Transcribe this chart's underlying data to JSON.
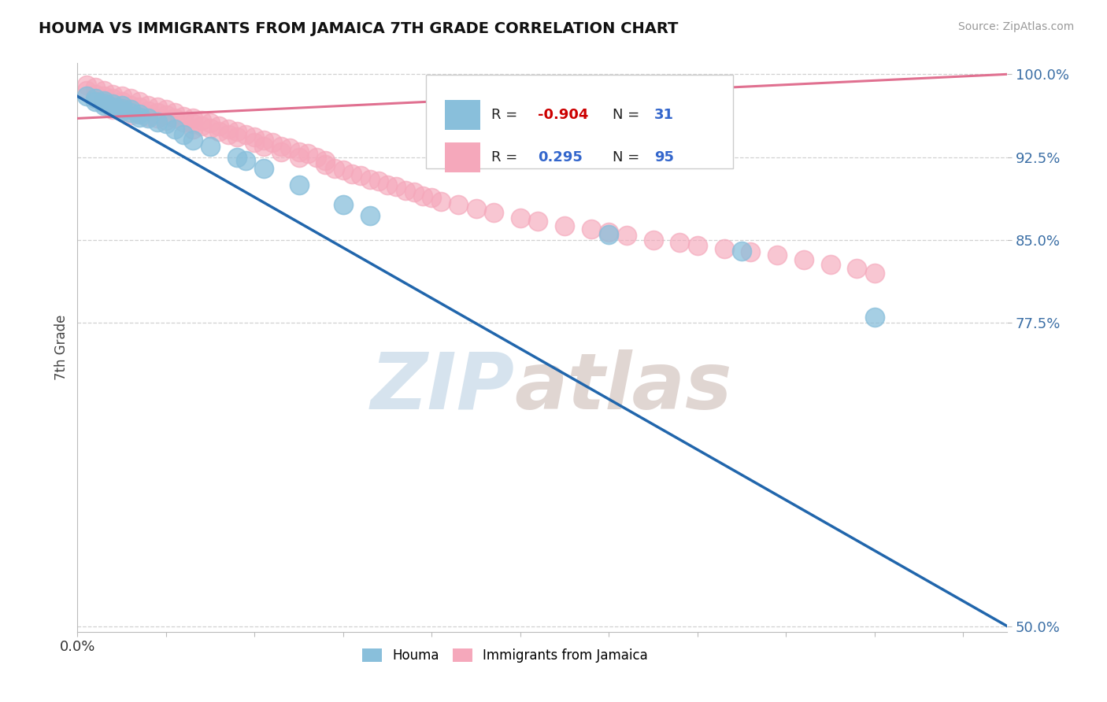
{
  "title": "HOUMA VS IMMIGRANTS FROM JAMAICA 7TH GRADE CORRELATION CHART",
  "source_text": "Source: ZipAtlas.com",
  "ylabel": "7th Grade",
  "xlim": [
    0.0,
    0.105
  ],
  "ylim": [
    0.495,
    1.01
  ],
  "yticks": [
    0.5,
    0.775,
    0.85,
    0.925,
    1.0
  ],
  "ytick_labels": [
    "50.0%",
    "77.5%",
    "85.0%",
    "92.5%",
    "100.0%"
  ],
  "xtick_positions": [
    0.0,
    0.01,
    0.02,
    0.03,
    0.04,
    0.05,
    0.06,
    0.07,
    0.08,
    0.09,
    0.1
  ],
  "blue_color": "#89bfdb",
  "pink_color": "#f5a8bb",
  "blue_line_color": "#2166ac",
  "pink_line_color": "#e07090",
  "grid_color": "#cccccc",
  "background_color": "#ffffff",
  "legend_R_blue": "-0.904",
  "legend_N_blue": "31",
  "legend_R_pink": "0.295",
  "legend_N_pink": "95",
  "blue_points_x": [
    0.001,
    0.002,
    0.002,
    0.003,
    0.003,
    0.003,
    0.004,
    0.004,
    0.005,
    0.005,
    0.005,
    0.006,
    0.006,
    0.007,
    0.007,
    0.008,
    0.009,
    0.01,
    0.011,
    0.012,
    0.013,
    0.015,
    0.018,
    0.019,
    0.021,
    0.025,
    0.03,
    0.033,
    0.06,
    0.075,
    0.09
  ],
  "blue_points_y": [
    0.98,
    0.978,
    0.975,
    0.976,
    0.974,
    0.972,
    0.973,
    0.97,
    0.972,
    0.969,
    0.967,
    0.968,
    0.965,
    0.964,
    0.961,
    0.96,
    0.957,
    0.955,
    0.95,
    0.945,
    0.94,
    0.935,
    0.925,
    0.922,
    0.915,
    0.9,
    0.882,
    0.872,
    0.855,
    0.84,
    0.78
  ],
  "blue_line_x": [
    0.0,
    0.105
  ],
  "blue_line_y": [
    0.98,
    0.5
  ],
  "pink_points_x": [
    0.001,
    0.001,
    0.002,
    0.002,
    0.002,
    0.003,
    0.003,
    0.003,
    0.004,
    0.004,
    0.004,
    0.004,
    0.005,
    0.005,
    0.005,
    0.006,
    0.006,
    0.006,
    0.006,
    0.007,
    0.007,
    0.007,
    0.008,
    0.008,
    0.008,
    0.009,
    0.009,
    0.009,
    0.01,
    0.01,
    0.01,
    0.011,
    0.011,
    0.012,
    0.012,
    0.013,
    0.013,
    0.013,
    0.014,
    0.014,
    0.015,
    0.015,
    0.016,
    0.016,
    0.017,
    0.017,
    0.018,
    0.018,
    0.019,
    0.02,
    0.02,
    0.021,
    0.021,
    0.022,
    0.023,
    0.023,
    0.024,
    0.025,
    0.025,
    0.026,
    0.027,
    0.028,
    0.028,
    0.029,
    0.03,
    0.031,
    0.032,
    0.033,
    0.034,
    0.035,
    0.036,
    0.037,
    0.038,
    0.039,
    0.04,
    0.041,
    0.043,
    0.045,
    0.047,
    0.05,
    0.052,
    0.055,
    0.058,
    0.06,
    0.062,
    0.065,
    0.068,
    0.07,
    0.073,
    0.076,
    0.079,
    0.082,
    0.085,
    0.088,
    0.09
  ],
  "pink_points_y": [
    0.99,
    0.985,
    0.988,
    0.982,
    0.978,
    0.985,
    0.98,
    0.975,
    0.982,
    0.978,
    0.972,
    0.968,
    0.98,
    0.975,
    0.97,
    0.978,
    0.972,
    0.968,
    0.963,
    0.975,
    0.97,
    0.965,
    0.972,
    0.967,
    0.962,
    0.97,
    0.965,
    0.96,
    0.968,
    0.963,
    0.958,
    0.965,
    0.96,
    0.962,
    0.957,
    0.96,
    0.955,
    0.95,
    0.958,
    0.953,
    0.956,
    0.951,
    0.953,
    0.948,
    0.95,
    0.945,
    0.948,
    0.943,
    0.945,
    0.943,
    0.938,
    0.94,
    0.935,
    0.938,
    0.935,
    0.93,
    0.933,
    0.93,
    0.925,
    0.928,
    0.925,
    0.922,
    0.918,
    0.915,
    0.913,
    0.91,
    0.908,
    0.905,
    0.903,
    0.9,
    0.898,
    0.895,
    0.893,
    0.89,
    0.888,
    0.885,
    0.882,
    0.878,
    0.875,
    0.87,
    0.867,
    0.863,
    0.86,
    0.857,
    0.854,
    0.85,
    0.848,
    0.845,
    0.842,
    0.839,
    0.836,
    0.832,
    0.828,
    0.824,
    0.82
  ],
  "pink_line_x": [
    0.0,
    0.105
  ],
  "pink_line_y": [
    0.96,
    1.0
  ],
  "watermark_zip_color": "#c5d8e8",
  "watermark_atlas_color": "#d4c5c0"
}
